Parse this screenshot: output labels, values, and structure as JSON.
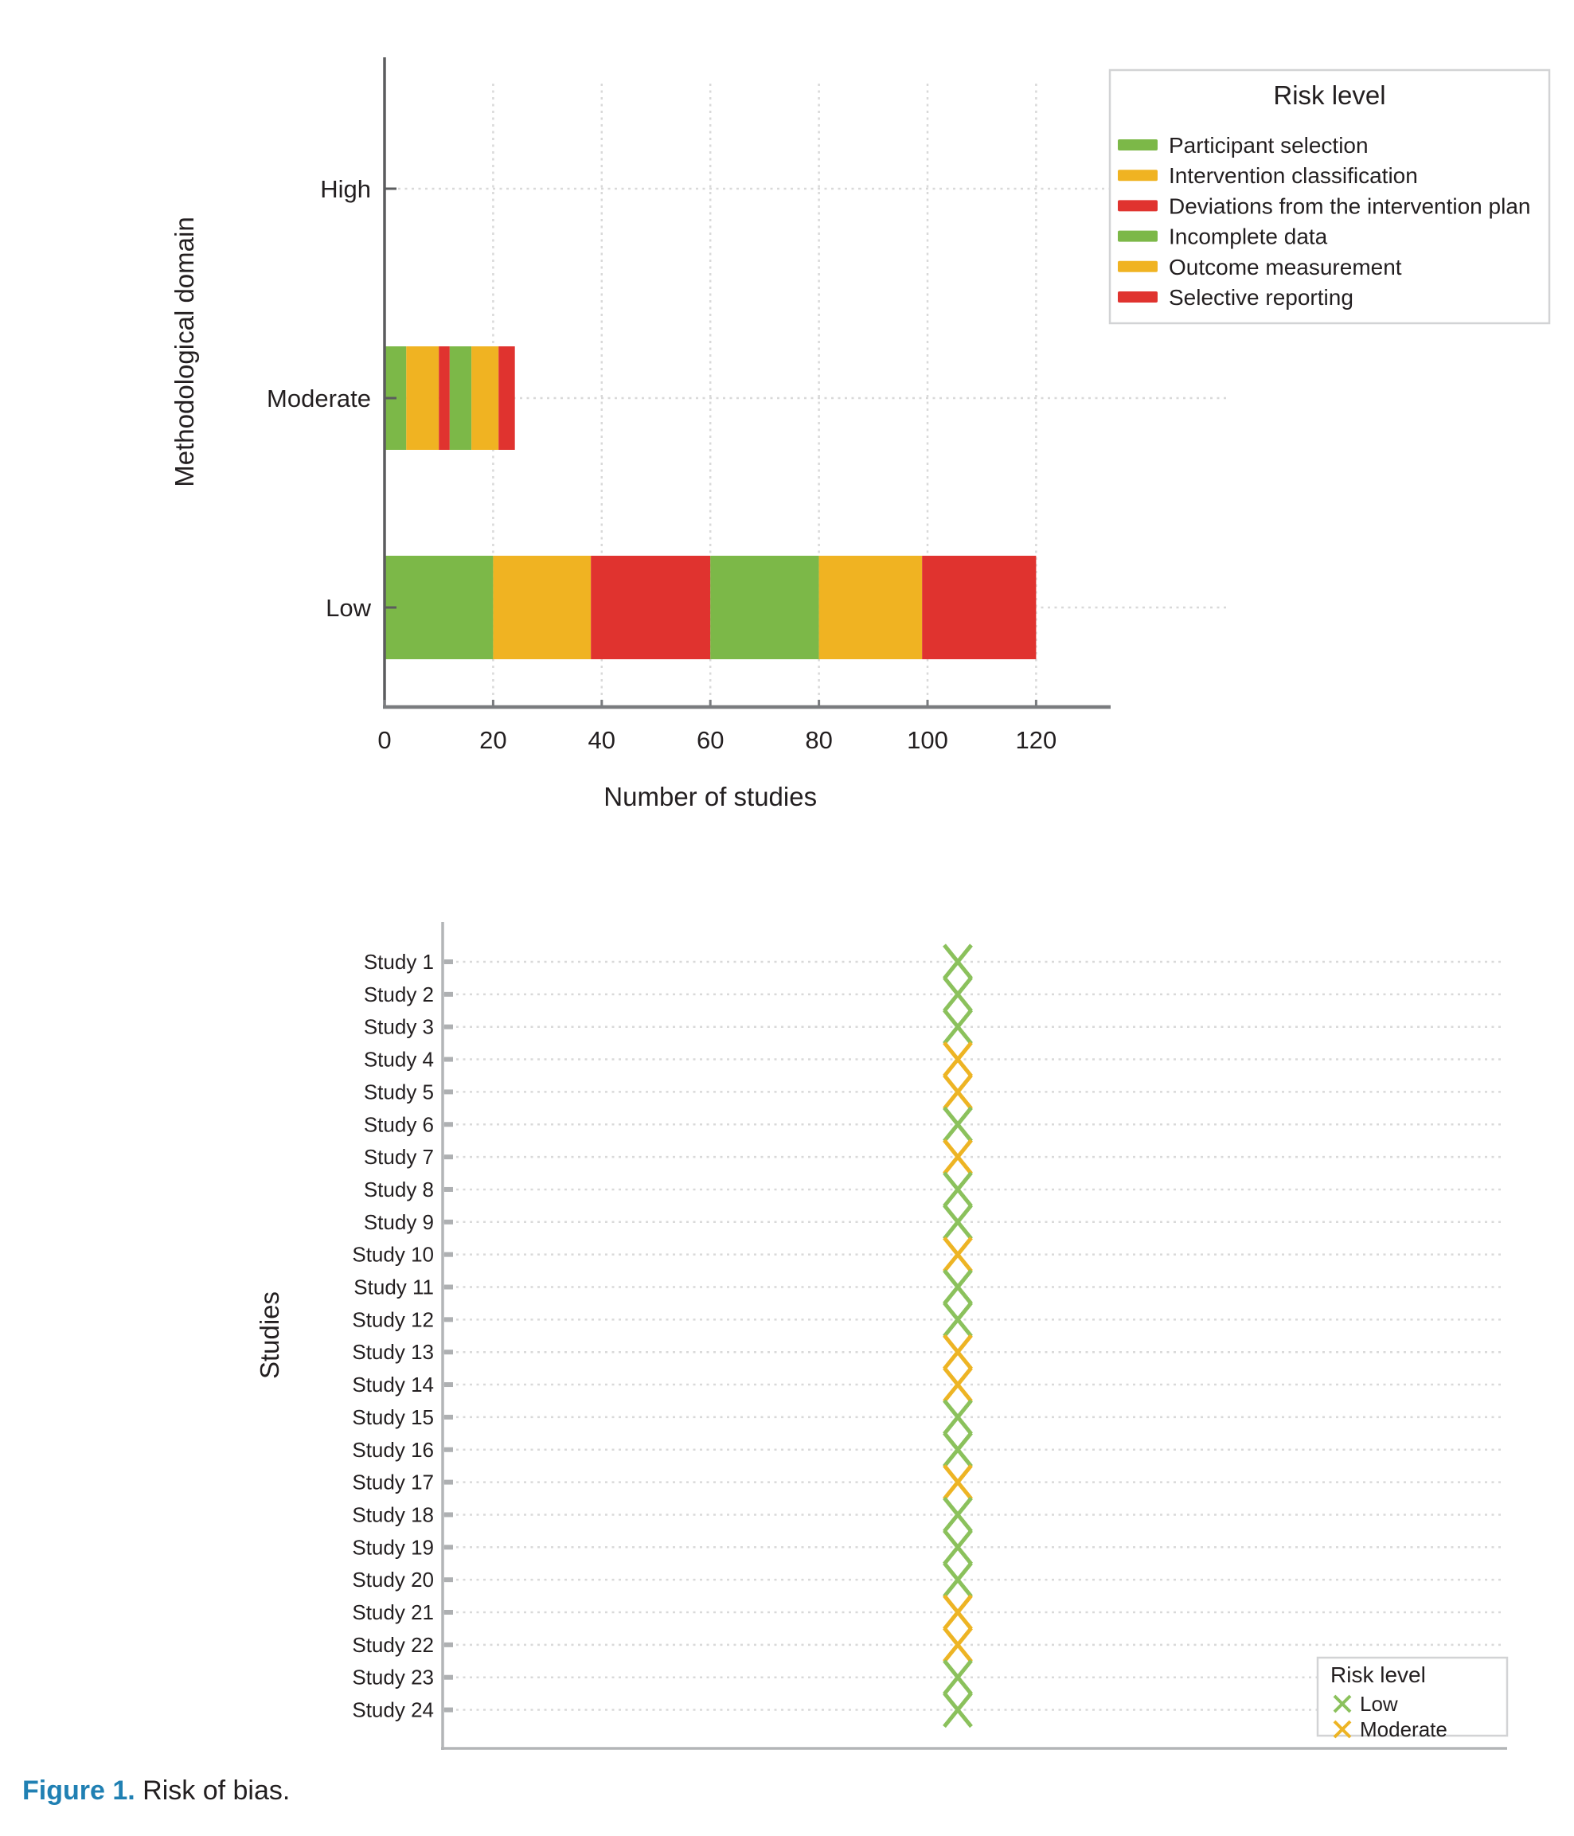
{
  "caption": {
    "label": "Figure 1.",
    "text": "Risk of bias."
  },
  "colors": {
    "series_green": "#7cb848",
    "series_amber": "#f0b322",
    "series_red": "#e0332f",
    "marker_low": "#8bc15c",
    "marker_moderate": "#edb424",
    "caption_accent": "#2080b3",
    "text": "#231f20"
  },
  "chart_data": [
    {
      "type": "bar",
      "orientation": "horizontal",
      "stacked": true,
      "title": "",
      "categories": [
        "High",
        "Moderate",
        "Low"
      ],
      "series": [
        {
          "name": "Participant selection",
          "color": "#7cb848",
          "values": [
            0,
            4,
            20
          ]
        },
        {
          "name": "Intervention classification",
          "color": "#f0b322",
          "values": [
            0,
            6,
            18
          ]
        },
        {
          "name": "Deviations from the intervention plan",
          "color": "#e0332f",
          "values": [
            0,
            2,
            22
          ]
        },
        {
          "name": "Incomplete data",
          "color": "#7cb848",
          "values": [
            0,
            4,
            20
          ]
        },
        {
          "name": "Outcome measurement",
          "color": "#f0b322",
          "values": [
            0,
            5,
            19
          ]
        },
        {
          "name": "Selective reporting",
          "color": "#e0332f",
          "values": [
            0,
            3,
            21
          ]
        }
      ],
      "xlabel": "Number of studies",
      "ylabel": "Methodological domain",
      "xlim": [
        0,
        120
      ],
      "xticks": [
        0,
        20,
        40,
        60,
        80,
        100,
        120
      ],
      "grid": true,
      "legend": {
        "title": "Risk level",
        "position": "top-right"
      }
    },
    {
      "type": "scatter",
      "marker": "x",
      "title": "",
      "xlabel": "",
      "ylabel": "Studies",
      "categories": [
        "Study 1",
        "Study 2",
        "Study 3",
        "Study 4",
        "Study 5",
        "Study 6",
        "Study 7",
        "Study 8",
        "Study 9",
        "Study 10",
        "Study 11",
        "Study 12",
        "Study 13",
        "Study 14",
        "Study 15",
        "Study 16",
        "Study 17",
        "Study 18",
        "Study 19",
        "Study 20",
        "Study 21",
        "Study 22",
        "Study 23",
        "Study 24"
      ],
      "values": [
        "Low",
        "Low",
        "Low",
        "Moderate",
        "Moderate",
        "Low",
        "Moderate",
        "Low",
        "Low",
        "Moderate",
        "Low",
        "Low",
        "Moderate",
        "Moderate",
        "Low",
        "Low",
        "Moderate",
        "Low",
        "Low",
        "Low",
        "Moderate",
        "Moderate",
        "Low",
        "Low"
      ],
      "marker_colors": {
        "Low": "#8bc15c",
        "Moderate": "#edb424"
      },
      "grid": true,
      "legend": {
        "title": "Risk level",
        "entries": [
          "Low",
          "Moderate"
        ],
        "position": "bottom-right"
      }
    }
  ]
}
